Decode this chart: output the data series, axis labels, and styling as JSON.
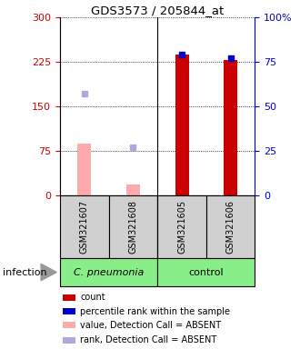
{
  "title": "GDS3573 / 205844_at",
  "samples": [
    "GSM321607",
    "GSM321608",
    "GSM321605",
    "GSM321606"
  ],
  "left_ylim": [
    0,
    300
  ],
  "right_ylim": [
    0,
    100
  ],
  "left_yticks": [
    0,
    75,
    150,
    225,
    300
  ],
  "right_yticks": [
    0,
    25,
    50,
    75,
    100
  ],
  "right_yticklabels": [
    "0",
    "25",
    "50",
    "75",
    "100%"
  ],
  "count_values": [
    null,
    null,
    238,
    228
  ],
  "count_color": "#cc0000",
  "count_absent_values": [
    88,
    18,
    null,
    null
  ],
  "count_absent_color": "#ffaaaa",
  "rank_values": [
    null,
    null,
    79,
    77
  ],
  "rank_color": "#0000cc",
  "rank_absent_values": [
    57,
    27,
    null,
    null
  ],
  "rank_absent_color": "#aaaadd",
  "bar_width": 0.28,
  "green_color": "#88ee88",
  "gray_color": "#d0d0d0",
  "group_label": "infection",
  "cpneumonia_label": "C. pneumonia",
  "control_label": "control",
  "legend_items": [
    {
      "color": "#cc0000",
      "label": "count"
    },
    {
      "color": "#0000cc",
      "label": "percentile rank within the sample"
    },
    {
      "color": "#ffaaaa",
      "label": "value, Detection Call = ABSENT"
    },
    {
      "color": "#aaaadd",
      "label": "rank, Detection Call = ABSENT"
    }
  ]
}
